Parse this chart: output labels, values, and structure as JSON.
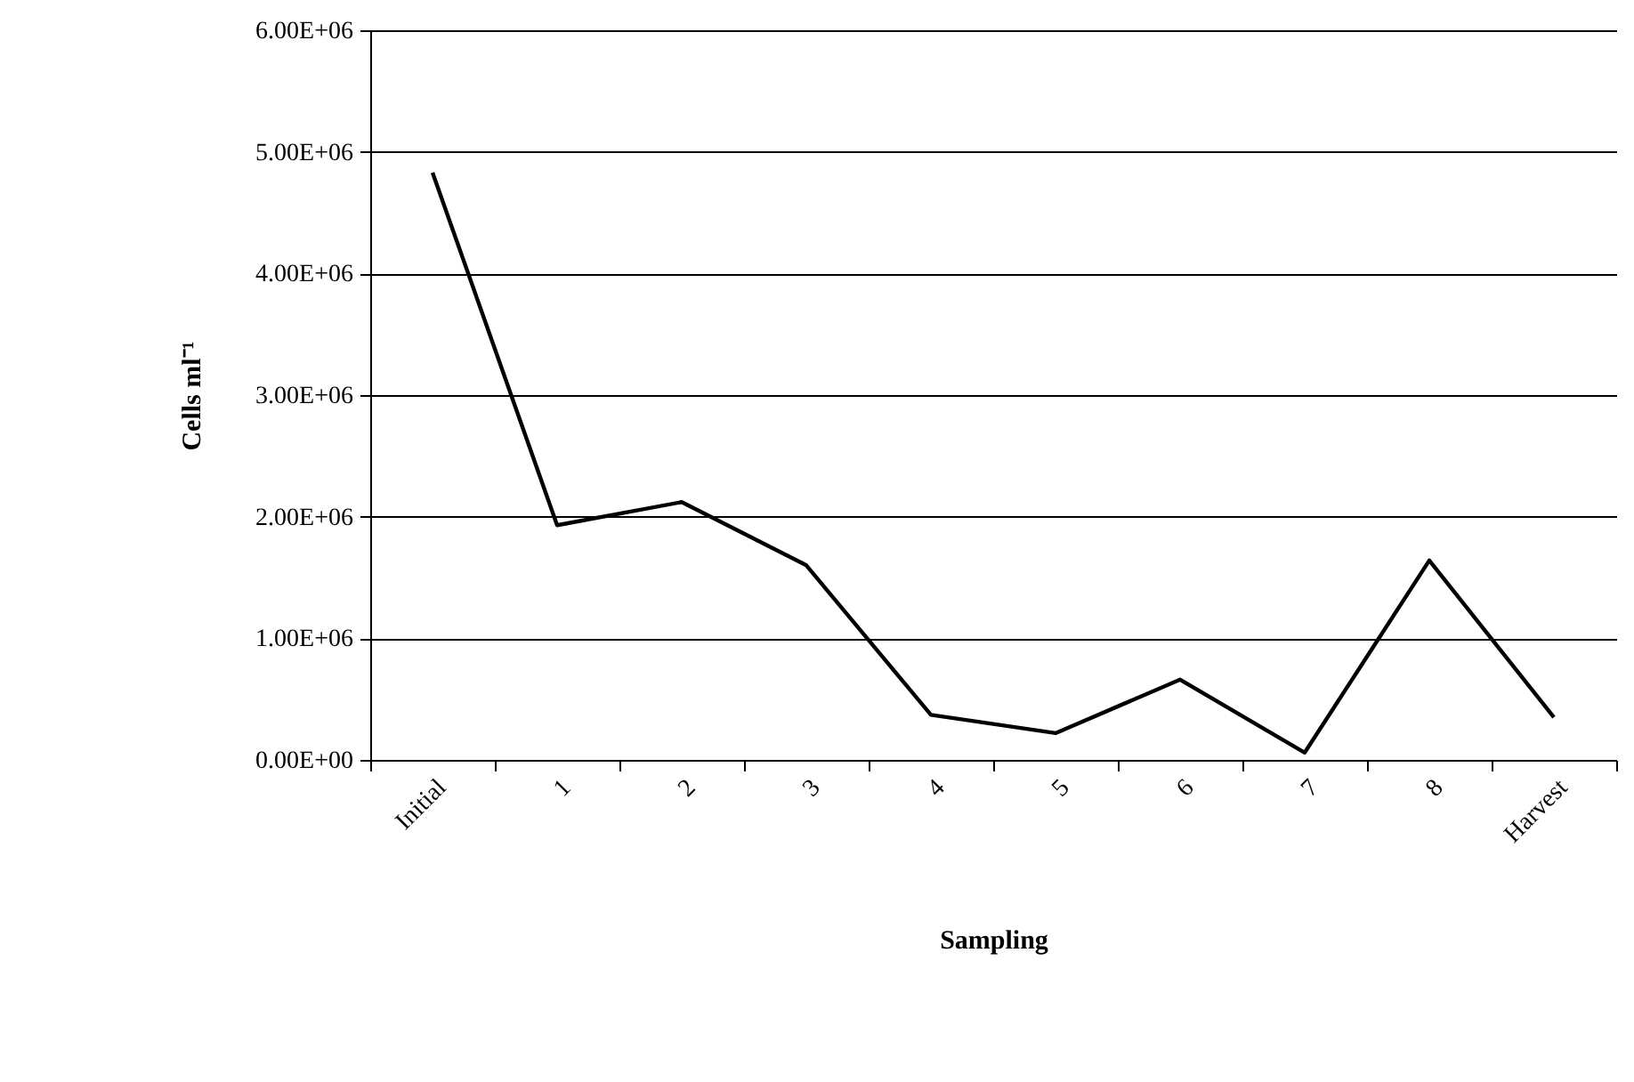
{
  "chart_data": {
    "type": "line",
    "xlabel": "Sampling",
    "ylabel": "Cells ml⁻¹",
    "categories": [
      "Initial",
      "1",
      "2",
      "3",
      "4",
      "5",
      "6",
      "7",
      "8",
      "Harvest"
    ],
    "series": [
      {
        "color": "#000000",
        "values": [
          4830000,
          1930000,
          2120000,
          1600000,
          370000,
          220000,
          660000,
          60000,
          1640000,
          350000
        ]
      }
    ],
    "ylim": [
      0,
      6000000
    ],
    "yticks": [
      {
        "value": 0,
        "label": "0.00E+00"
      },
      {
        "value": 1000000,
        "label": "1.00E+06"
      },
      {
        "value": 2000000,
        "label": "2.00E+06"
      },
      {
        "value": 3000000,
        "label": "3.00E+06"
      },
      {
        "value": 4000000,
        "label": "4.00E+06"
      },
      {
        "value": 5000000,
        "label": "5.00E+06"
      },
      {
        "value": 6000000,
        "label": "6.00E+06"
      }
    ],
    "grid": "y",
    "marker": "none",
    "line_style": "solid"
  }
}
